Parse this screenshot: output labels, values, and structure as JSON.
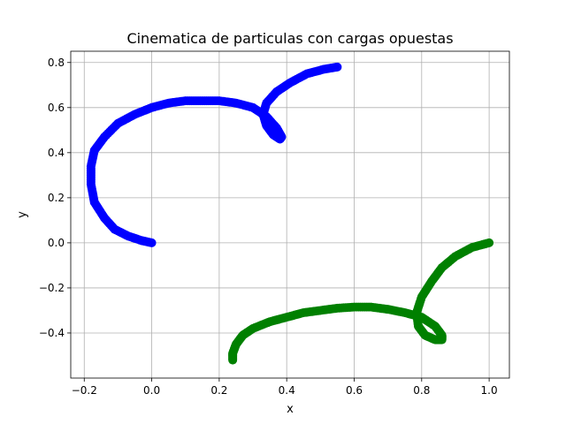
{
  "chart_data": {
    "type": "scatter",
    "title": "Cinematica de particulas con cargas opuestas",
    "xlabel": "x",
    "ylabel": "y",
    "xlim": [
      -0.24,
      1.06
    ],
    "ylim": [
      -0.6,
      0.85
    ],
    "xticks": [
      -0.2,
      0.0,
      0.2,
      0.4,
      0.6,
      0.8,
      1.0
    ],
    "xtick_labels": [
      "−0.2",
      "0.0",
      "0.2",
      "0.4",
      "0.6",
      "0.8",
      "1.0"
    ],
    "yticks": [
      -0.4,
      -0.2,
      0.0,
      0.2,
      0.4,
      0.6,
      0.8
    ],
    "ytick_labels": [
      "−0.4",
      "−0.2",
      "0.0",
      "0.2",
      "0.4",
      "0.6",
      "0.8"
    ],
    "grid": true,
    "legend": "none",
    "series": [
      {
        "color": "#0000ff",
        "x": [
          0.0,
          -0.03,
          -0.07,
          -0.11,
          -0.14,
          -0.17,
          -0.18,
          -0.18,
          -0.17,
          -0.14,
          -0.1,
          -0.05,
          0.0,
          0.05,
          0.1,
          0.15,
          0.2,
          0.25,
          0.3,
          0.34,
          0.37,
          0.385,
          0.38,
          0.36,
          0.34,
          0.33,
          0.34,
          0.37,
          0.41,
          0.46,
          0.51,
          0.55
        ],
        "y": [
          0.0,
          0.01,
          0.03,
          0.06,
          0.11,
          0.18,
          0.26,
          0.34,
          0.41,
          0.47,
          0.53,
          0.57,
          0.6,
          0.62,
          0.63,
          0.63,
          0.63,
          0.62,
          0.6,
          0.56,
          0.51,
          0.47,
          0.46,
          0.48,
          0.52,
          0.57,
          0.62,
          0.67,
          0.71,
          0.75,
          0.77,
          0.78
        ]
      },
      {
        "color": "#008000",
        "x": [
          1.0,
          0.95,
          0.9,
          0.86,
          0.83,
          0.8,
          0.785,
          0.79,
          0.81,
          0.84,
          0.86,
          0.86,
          0.84,
          0.8,
          0.75,
          0.7,
          0.65,
          0.6,
          0.55,
          0.5,
          0.45,
          0.4,
          0.35,
          0.3,
          0.27,
          0.25,
          0.24,
          0.24
        ],
        "y": [
          0.0,
          -0.02,
          -0.06,
          -0.11,
          -0.17,
          -0.24,
          -0.31,
          -0.37,
          -0.41,
          -0.43,
          -0.43,
          -0.41,
          -0.37,
          -0.33,
          -0.31,
          -0.295,
          -0.285,
          -0.285,
          -0.29,
          -0.3,
          -0.31,
          -0.33,
          -0.35,
          -0.38,
          -0.41,
          -0.45,
          -0.49,
          -0.52
        ]
      }
    ]
  }
}
